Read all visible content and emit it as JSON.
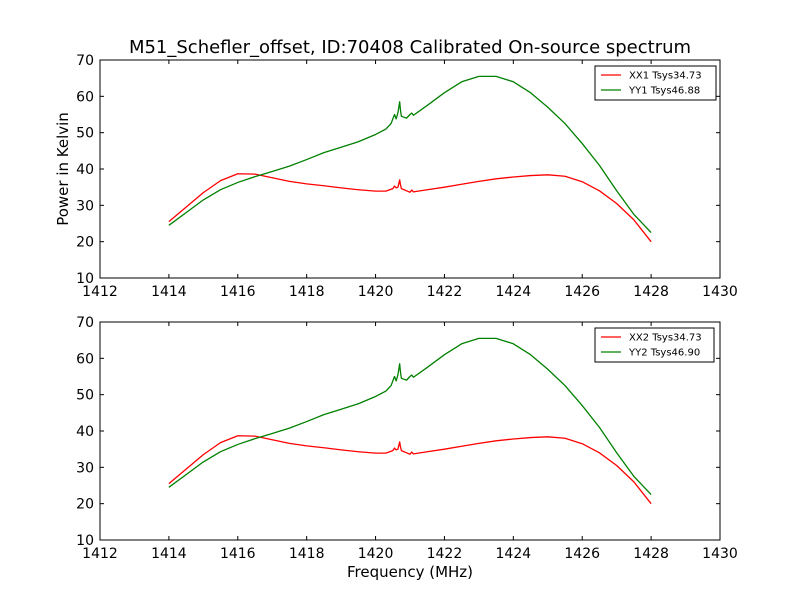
{
  "figure": {
    "title": "M51_Schefler_offset, ID:70408 Calibrated On-source spectrum",
    "xlabel": "Frequency (MHz)",
    "ylabel": "Power in Kelvin"
  },
  "chart_data": [
    {
      "type": "line",
      "panel": "top",
      "title": "M51_Schefler_offset, ID:70408 Calibrated On-source spectrum",
      "xlabel": "",
      "ylabel": "Power in Kelvin",
      "xlim": [
        1412,
        1430
      ],
      "ylim": [
        10,
        70
      ],
      "xticks": [
        1412,
        1414,
        1416,
        1418,
        1420,
        1422,
        1424,
        1426,
        1428,
        1430
      ],
      "yticks": [
        10,
        20,
        30,
        40,
        50,
        60,
        70
      ],
      "grid": false,
      "legend_position": "top-right",
      "series": [
        {
          "name": "XX1 Tsys34.73",
          "color": "#ff0000",
          "points": [
            [
              1414.0,
              25.5
            ],
            [
              1414.5,
              29.5
            ],
            [
              1415.0,
              33.5
            ],
            [
              1415.5,
              36.8
            ],
            [
              1416.0,
              38.7
            ],
            [
              1416.5,
              38.6
            ],
            [
              1417.0,
              37.6
            ],
            [
              1417.5,
              36.6
            ],
            [
              1418.0,
              35.9
            ],
            [
              1418.5,
              35.4
            ],
            [
              1419.0,
              34.8
            ],
            [
              1419.5,
              34.3
            ],
            [
              1420.0,
              33.9
            ],
            [
              1420.3,
              33.9
            ],
            [
              1420.5,
              34.6
            ],
            [
              1420.55,
              35.3
            ],
            [
              1420.6,
              34.8
            ],
            [
              1420.65,
              35.0
            ],
            [
              1420.7,
              37.0
            ],
            [
              1420.72,
              35.8
            ],
            [
              1420.75,
              34.6
            ],
            [
              1420.9,
              34.0
            ],
            [
              1421.0,
              33.6
            ],
            [
              1421.05,
              34.2
            ],
            [
              1421.1,
              33.7
            ],
            [
              1421.5,
              34.3
            ],
            [
              1422.0,
              35.0
            ],
            [
              1422.5,
              35.8
            ],
            [
              1423.0,
              36.6
            ],
            [
              1423.5,
              37.3
            ],
            [
              1424.0,
              37.8
            ],
            [
              1424.5,
              38.2
            ],
            [
              1425.0,
              38.4
            ],
            [
              1425.5,
              38.0
            ],
            [
              1426.0,
              36.5
            ],
            [
              1426.5,
              34.0
            ],
            [
              1427.0,
              30.5
            ],
            [
              1427.5,
              26.0
            ],
            [
              1428.0,
              20.0
            ]
          ]
        },
        {
          "name": "YY1 Tsys46.88",
          "color": "#008000",
          "points": [
            [
              1414.0,
              24.5
            ],
            [
              1414.5,
              28.0
            ],
            [
              1415.0,
              31.5
            ],
            [
              1415.5,
              34.3
            ],
            [
              1416.0,
              36.3
            ],
            [
              1416.5,
              37.9
            ],
            [
              1417.0,
              39.3
            ],
            [
              1417.5,
              40.8
            ],
            [
              1418.0,
              42.6
            ],
            [
              1418.5,
              44.5
            ],
            [
              1419.0,
              46.0
            ],
            [
              1419.5,
              47.5
            ],
            [
              1420.0,
              49.5
            ],
            [
              1420.3,
              51.0
            ],
            [
              1420.45,
              52.5
            ],
            [
              1420.55,
              55.0
            ],
            [
              1420.6,
              53.8
            ],
            [
              1420.65,
              55.5
            ],
            [
              1420.7,
              58.5
            ],
            [
              1420.72,
              56.5
            ],
            [
              1420.75,
              54.5
            ],
            [
              1420.9,
              54.0
            ],
            [
              1421.0,
              55.0
            ],
            [
              1421.05,
              55.4
            ],
            [
              1421.1,
              54.8
            ],
            [
              1421.5,
              57.5
            ],
            [
              1422.0,
              61.0
            ],
            [
              1422.5,
              64.0
            ],
            [
              1423.0,
              65.5
            ],
            [
              1423.5,
              65.5
            ],
            [
              1424.0,
              64.0
            ],
            [
              1424.5,
              61.0
            ],
            [
              1425.0,
              57.0
            ],
            [
              1425.5,
              52.5
            ],
            [
              1426.0,
              47.0
            ],
            [
              1426.5,
              41.0
            ],
            [
              1427.0,
              34.0
            ],
            [
              1427.5,
              27.5
            ],
            [
              1428.0,
              22.5
            ]
          ]
        }
      ]
    },
    {
      "type": "line",
      "panel": "bottom",
      "title": "",
      "xlabel": "Frequency (MHz)",
      "ylabel": "",
      "xlim": [
        1412,
        1430
      ],
      "ylim": [
        10,
        70
      ],
      "xticks": [
        1412,
        1414,
        1416,
        1418,
        1420,
        1422,
        1424,
        1426,
        1428,
        1430
      ],
      "yticks": [
        10,
        20,
        30,
        40,
        50,
        60,
        70
      ],
      "grid": false,
      "legend_position": "top-right",
      "series": [
        {
          "name": "XX2 Tsys34.73",
          "color": "#ff0000",
          "points": [
            [
              1414.0,
              25.5
            ],
            [
              1414.5,
              29.5
            ],
            [
              1415.0,
              33.5
            ],
            [
              1415.5,
              36.8
            ],
            [
              1416.0,
              38.7
            ],
            [
              1416.5,
              38.6
            ],
            [
              1417.0,
              37.6
            ],
            [
              1417.5,
              36.6
            ],
            [
              1418.0,
              35.9
            ],
            [
              1418.5,
              35.4
            ],
            [
              1419.0,
              34.8
            ],
            [
              1419.5,
              34.3
            ],
            [
              1420.0,
              33.9
            ],
            [
              1420.3,
              33.9
            ],
            [
              1420.5,
              34.6
            ],
            [
              1420.55,
              35.3
            ],
            [
              1420.6,
              34.8
            ],
            [
              1420.65,
              35.0
            ],
            [
              1420.7,
              37.0
            ],
            [
              1420.72,
              35.8
            ],
            [
              1420.75,
              34.6
            ],
            [
              1420.9,
              34.0
            ],
            [
              1421.0,
              33.6
            ],
            [
              1421.05,
              34.2
            ],
            [
              1421.1,
              33.7
            ],
            [
              1421.5,
              34.3
            ],
            [
              1422.0,
              35.0
            ],
            [
              1422.5,
              35.8
            ],
            [
              1423.0,
              36.6
            ],
            [
              1423.5,
              37.3
            ],
            [
              1424.0,
              37.8
            ],
            [
              1424.5,
              38.2
            ],
            [
              1425.0,
              38.4
            ],
            [
              1425.5,
              38.0
            ],
            [
              1426.0,
              36.5
            ],
            [
              1426.5,
              34.0
            ],
            [
              1427.0,
              30.5
            ],
            [
              1427.5,
              26.0
            ],
            [
              1428.0,
              20.0
            ]
          ]
        },
        {
          "name": "YY2 Tsys46.90",
          "color": "#008000",
          "points": [
            [
              1414.0,
              24.5
            ],
            [
              1414.5,
              28.0
            ],
            [
              1415.0,
              31.5
            ],
            [
              1415.5,
              34.3
            ],
            [
              1416.0,
              36.3
            ],
            [
              1416.5,
              37.9
            ],
            [
              1417.0,
              39.3
            ],
            [
              1417.5,
              40.8
            ],
            [
              1418.0,
              42.6
            ],
            [
              1418.5,
              44.5
            ],
            [
              1419.0,
              46.0
            ],
            [
              1419.5,
              47.5
            ],
            [
              1420.0,
              49.5
            ],
            [
              1420.3,
              51.0
            ],
            [
              1420.45,
              52.5
            ],
            [
              1420.55,
              55.0
            ],
            [
              1420.6,
              53.8
            ],
            [
              1420.65,
              55.5
            ],
            [
              1420.7,
              58.5
            ],
            [
              1420.72,
              56.5
            ],
            [
              1420.75,
              54.5
            ],
            [
              1420.9,
              54.0
            ],
            [
              1421.0,
              55.0
            ],
            [
              1421.05,
              55.4
            ],
            [
              1421.1,
              54.8
            ],
            [
              1421.5,
              57.5
            ],
            [
              1422.0,
              61.0
            ],
            [
              1422.5,
              64.0
            ],
            [
              1423.0,
              65.5
            ],
            [
              1423.5,
              65.5
            ],
            [
              1424.0,
              64.0
            ],
            [
              1424.5,
              61.0
            ],
            [
              1425.0,
              57.0
            ],
            [
              1425.5,
              52.5
            ],
            [
              1426.0,
              47.0
            ],
            [
              1426.5,
              41.0
            ],
            [
              1427.0,
              34.0
            ],
            [
              1427.5,
              27.5
            ],
            [
              1428.0,
              22.5
            ]
          ]
        }
      ]
    }
  ]
}
